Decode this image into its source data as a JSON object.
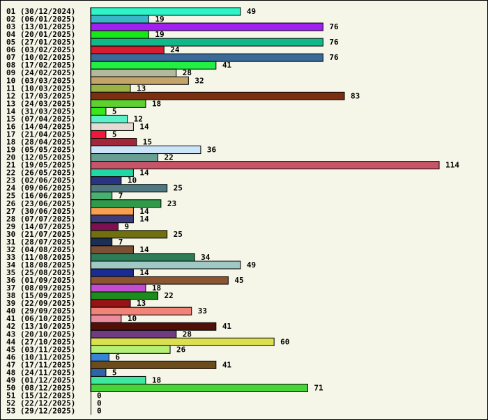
{
  "chart_data": {
    "type": "bar",
    "orientation": "horizontal",
    "title": "",
    "xlabel": "",
    "ylabel": "",
    "grid": false,
    "legend": "none",
    "xlim": [
      0,
      114
    ],
    "bars": [
      {
        "label": "01 (30/12/2024)",
        "value": 49,
        "color": "#2ef5c8"
      },
      {
        "label": "02 (06/01/2025)",
        "value": 19,
        "color": "#3ab6c8"
      },
      {
        "label": "03 (13/01/2025)",
        "value": 76,
        "color": "#a020f0"
      },
      {
        "label": "04 (20/01/2025)",
        "value": 19,
        "color": "#18e818"
      },
      {
        "label": "05 (27/01/2025)",
        "value": 76,
        "color": "#10b88a"
      },
      {
        "label": "06 (03/02/2025)",
        "value": 24,
        "color": "#d81c30"
      },
      {
        "label": "07 (10/02/2025)",
        "value": 76,
        "color": "#3a6a98"
      },
      {
        "label": "08 (17/02/2025)",
        "value": 41,
        "color": "#22ee44"
      },
      {
        "label": "09 (24/02/2025)",
        "value": 28,
        "color": "#b4b89c"
      },
      {
        "label": "10 (03/03/2025)",
        "value": 32,
        "color": "#c4a468"
      },
      {
        "label": "11 (10/03/2025)",
        "value": 13,
        "color": "#98b444"
      },
      {
        "label": "12 (17/03/2025)",
        "value": 83,
        "color": "#7a3010"
      },
      {
        "label": "13 (24/03/2025)",
        "value": 18,
        "color": "#5ed030"
      },
      {
        "label": "14 (31/03/2025)",
        "value": 5,
        "color": "#38e81c"
      },
      {
        "label": "15 (07/04/2025)",
        "value": 12,
        "color": "#5ef0c8"
      },
      {
        "label": "16 (14/04/2025)",
        "value": 14,
        "color": "#e4dcd4"
      },
      {
        "label": "17 (21/04/2025)",
        "value": 5,
        "color": "#f01838"
      },
      {
        "label": "18 (28/04/2025)",
        "value": 15,
        "color": "#a02838"
      },
      {
        "label": "19 (05/05/2025)",
        "value": 36,
        "color": "#cce4f8"
      },
      {
        "label": "20 (12/05/2025)",
        "value": 22,
        "color": "#6aa094"
      },
      {
        "label": "21 (19/05/2025)",
        "value": 114,
        "color": "#c85468"
      },
      {
        "label": "22 (26/05/2025)",
        "value": 14,
        "color": "#20d8a4"
      },
      {
        "label": "23 (02/06/2025)",
        "value": 10,
        "color": "#2a3484"
      },
      {
        "label": "24 (09/06/2025)",
        "value": 25,
        "color": "#507880"
      },
      {
        "label": "25 (16/06/2025)",
        "value": 7,
        "color": "#48b070"
      },
      {
        "label": "26 (23/06/2025)",
        "value": 23,
        "color": "#2e9a4a"
      },
      {
        "label": "27 (30/06/2025)",
        "value": 14,
        "color": "#f8a050"
      },
      {
        "label": "28 (07/07/2025)",
        "value": 14,
        "color": "#3c3c7c"
      },
      {
        "label": "29 (14/07/2025)",
        "value": 9,
        "color": "#7c1050"
      },
      {
        "label": "30 (21/07/2025)",
        "value": 25,
        "color": "#707010"
      },
      {
        "label": "31 (28/07/2025)",
        "value": 7,
        "color": "#1c2e54"
      },
      {
        "label": "32 (04/08/2025)",
        "value": 14,
        "color": "#7c5034"
      },
      {
        "label": "33 (11/08/2025)",
        "value": 34,
        "color": "#2c7c58"
      },
      {
        "label": "34 (18/08/2025)",
        "value": 49,
        "color": "#a0c8c4"
      },
      {
        "label": "35 (25/08/2025)",
        "value": 14,
        "color": "#1a2c94"
      },
      {
        "label": "36 (01/09/2025)",
        "value": 45,
        "color": "#8c5430"
      },
      {
        "label": "37 (08/09/2025)",
        "value": 18,
        "color": "#c44cd0"
      },
      {
        "label": "38 (15/09/2025)",
        "value": 22,
        "color": "#1c8c1c"
      },
      {
        "label": "39 (22/09/2025)",
        "value": 13,
        "color": "#981414"
      },
      {
        "label": "40 (29/09/2025)",
        "value": 33,
        "color": "#f08478"
      },
      {
        "label": "41 (06/10/2025)",
        "value": 10,
        "color": "#ec8ca0"
      },
      {
        "label": "42 (13/10/2025)",
        "value": 41,
        "color": "#501008"
      },
      {
        "label": "43 (20/10/2025)",
        "value": 28,
        "color": "#703c80"
      },
      {
        "label": "44 (27/10/2025)",
        "value": 60,
        "color": "#dce050"
      },
      {
        "label": "45 (03/11/2025)",
        "value": 26,
        "color": "#b4f078"
      },
      {
        "label": "46 (10/11/2025)",
        "value": 6,
        "color": "#3884d4"
      },
      {
        "label": "47 (17/11/2025)",
        "value": 41,
        "color": "#6c4c1c"
      },
      {
        "label": "48 (24/11/2025)",
        "value": 5,
        "color": "#3064a8"
      },
      {
        "label": "49 (01/12/2025)",
        "value": 18,
        "color": "#3ce8a0"
      },
      {
        "label": "50 (08/12/2025)",
        "value": 71,
        "color": "#48d438"
      },
      {
        "label": "51 (15/12/2025)",
        "value": 0,
        "color": "#888888"
      },
      {
        "label": "52 (22/12/2025)",
        "value": 0,
        "color": "#888888"
      },
      {
        "label": "53 (29/12/2025)",
        "value": 0,
        "color": "#888888"
      }
    ]
  }
}
